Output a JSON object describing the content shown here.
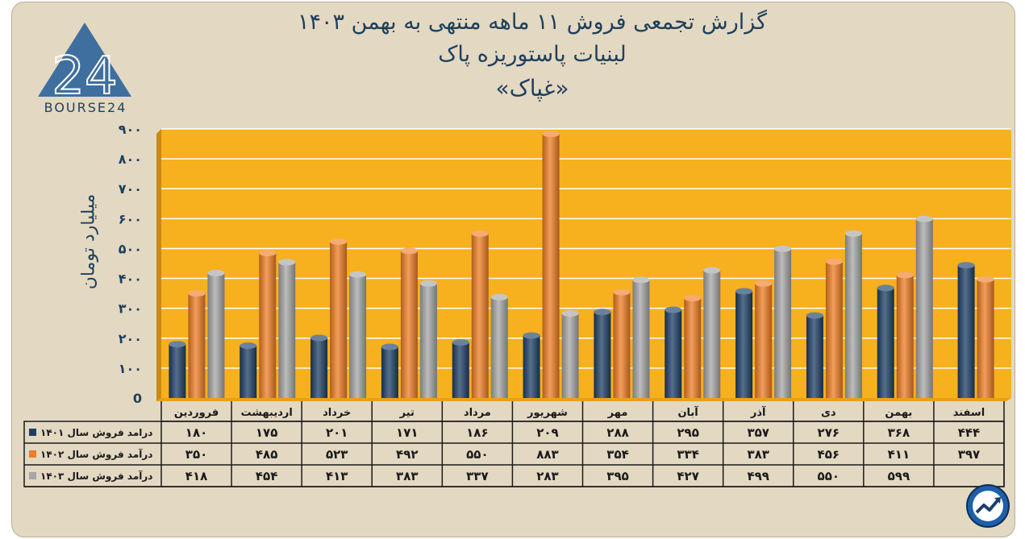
{
  "title_lines": [
    "گزارش تجمعی فروش ۱۱ ماهه منتهی به بهمن ۱۴۰۳",
    "لبنیات پاستوریزه پاک",
    "«غپاک»"
  ],
  "logo": {
    "text": "BOURSE24",
    "mark": "24"
  },
  "colors": {
    "background": "#e3d8c2",
    "plot": "#f7b01e",
    "series": [
      "#1c3f66",
      "#ef7d24",
      "#a6a6a6"
    ],
    "text": "#1e3f5c"
  },
  "chart_data": {
    "type": "bar",
    "ylabel": "میلیارد تومان",
    "ylim": [
      0,
      900
    ],
    "y_ticks": [
      "0",
      "۱۰۰",
      "۲۰۰",
      "۳۰۰",
      "۴۰۰",
      "۵۰۰",
      "۶۰۰",
      "۷۰۰",
      "۸۰۰",
      "۹۰۰"
    ],
    "categories": [
      "فروردین",
      "اردیبهشت",
      "خرداد",
      "تیر",
      "مرداد",
      "شهریور",
      "مهر",
      "آبان",
      "آذر",
      "دی",
      "بهمن",
      "اسفند"
    ],
    "series": [
      {
        "name": "درامد فروش سال ۱۴۰۱",
        "values": [
          180,
          175,
          201,
          171,
          186,
          209,
          288,
          295,
          357,
          276,
          368,
          444
        ],
        "labels": [
          "۱۸۰",
          "۱۷۵",
          "۲۰۱",
          "۱۷۱",
          "۱۸۶",
          "۲۰۹",
          "۲۸۸",
          "۲۹۵",
          "۳۵۷",
          "۲۷۶",
          "۳۶۸",
          "۴۴۴"
        ]
      },
      {
        "name": "درآمد فروش سال ۱۴۰۲",
        "values": [
          350,
          485,
          523,
          492,
          550,
          883,
          354,
          334,
          383,
          456,
          411,
          397
        ],
        "labels": [
          "۳۵۰",
          "۴۸۵",
          "۵۲۳",
          "۴۹۲",
          "۵۵۰",
          "۸۸۳",
          "۳۵۴",
          "۳۳۴",
          "۳۸۳",
          "۴۵۶",
          "۴۱۱",
          "۳۹۷"
        ]
      },
      {
        "name": "درآمد فروش سال ۱۴۰۳",
        "values": [
          418,
          454,
          413,
          383,
          337,
          283,
          395,
          427,
          499,
          550,
          599,
          null
        ],
        "labels": [
          "۴۱۸",
          "۴۵۴",
          "۴۱۳",
          "۳۸۳",
          "۳۳۷",
          "۲۸۳",
          "۳۹۵",
          "۴۲۷",
          "۴۹۹",
          "۵۵۰",
          "۵۹۹",
          ""
        ]
      }
    ],
    "legend": "table-below",
    "grid": true
  }
}
